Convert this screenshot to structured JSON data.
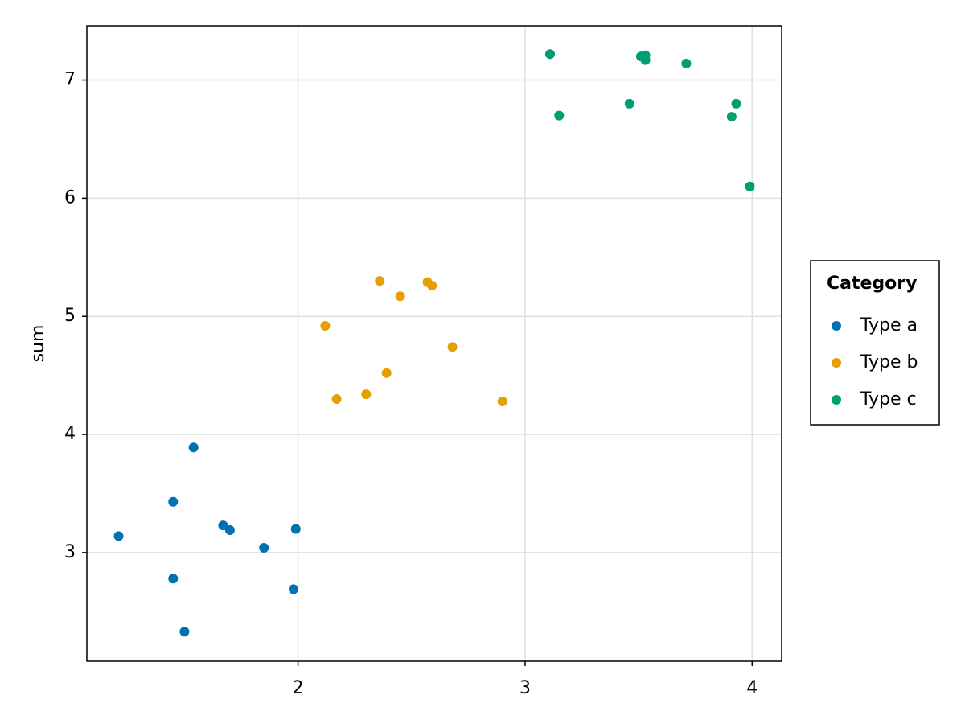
{
  "chart_data": {
    "type": "scatter",
    "y_label": "sum",
    "xlim": [
      1.07,
      4.13
    ],
    "ylim": [
      2.08,
      7.46
    ],
    "xticks": [
      2,
      3,
      4
    ],
    "yticks": [
      3,
      4,
      5,
      6,
      7
    ],
    "grid": true,
    "legend_title": "Category",
    "legend_position": "right",
    "series": [
      {
        "name": "Type a",
        "color": "#0072b2",
        "x": [
          1.21,
          1.45,
          1.54,
          1.67,
          1.7,
          1.85,
          1.99,
          1.45,
          1.98,
          1.5
        ],
        "values": [
          3.14,
          3.43,
          3.89,
          3.23,
          3.19,
          3.04,
          3.2,
          2.78,
          2.69,
          2.33
        ]
      },
      {
        "name": "Type b",
        "color": "#e69f00",
        "x": [
          2.12,
          2.36,
          2.45,
          2.57,
          2.59,
          2.68,
          2.39,
          2.3,
          2.17,
          2.9
        ],
        "values": [
          4.92,
          5.3,
          5.17,
          5.29,
          5.26,
          4.74,
          4.52,
          4.34,
          4.3,
          4.28
        ]
      },
      {
        "name": "Type c",
        "color": "#009e73",
        "x": [
          3.11,
          3.15,
          3.46,
          3.51,
          3.53,
          3.53,
          3.71,
          3.93,
          3.91,
          3.99
        ],
        "values": [
          7.22,
          6.7,
          6.8,
          7.2,
          7.21,
          7.17,
          7.14,
          6.8,
          6.69,
          6.1
        ]
      }
    ]
  }
}
